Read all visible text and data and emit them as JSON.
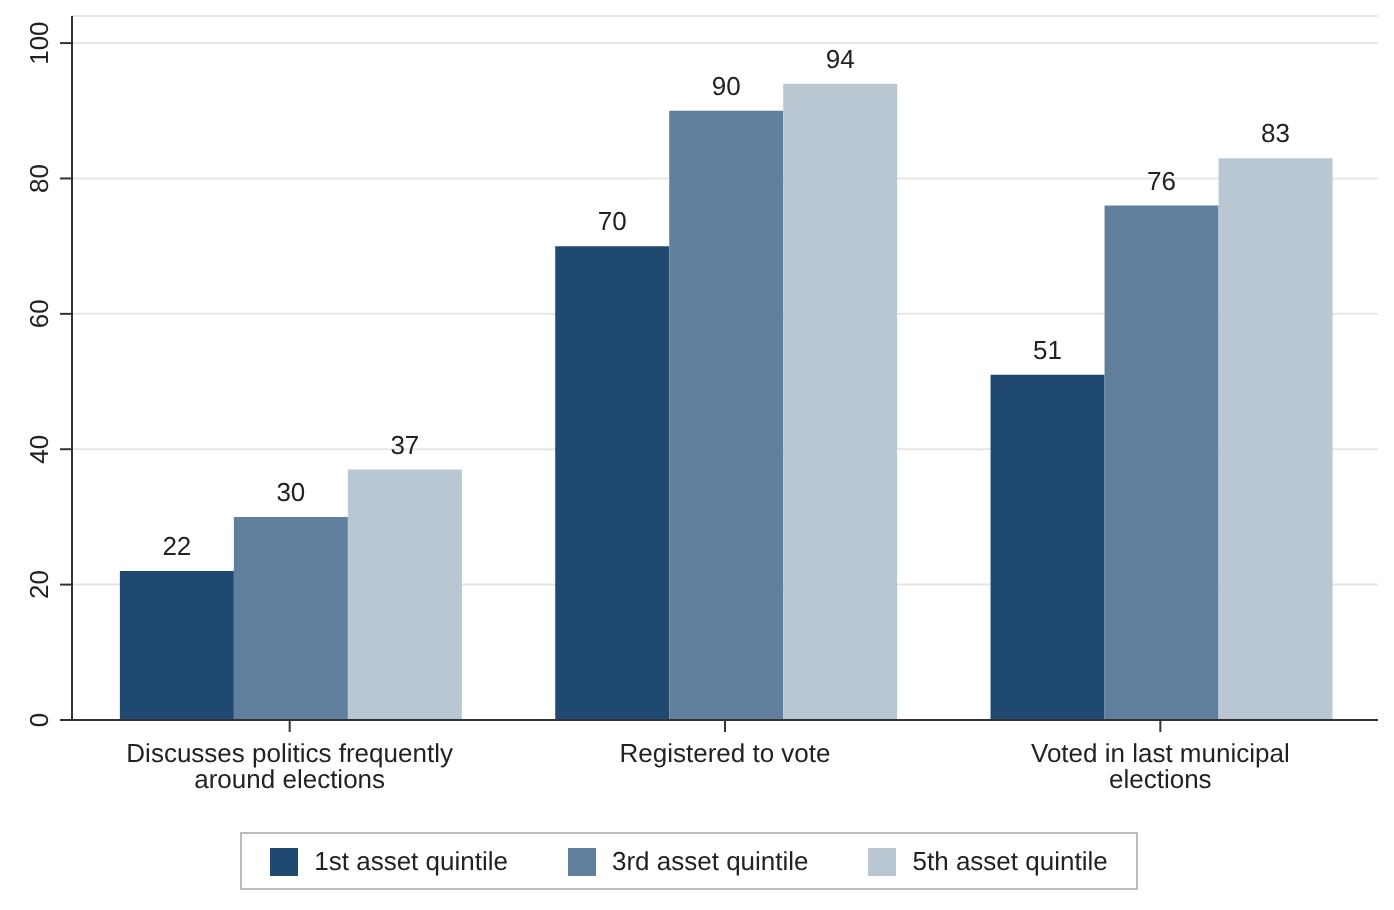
{
  "chart_data": {
    "type": "bar",
    "categories": [
      "Discusses politics frequently around elections",
      "Registered to vote",
      "Voted in last municipal elections"
    ],
    "series": [
      {
        "name": "1st asset quintile",
        "color": "#1f4970",
        "values": [
          22,
          70,
          51
        ]
      },
      {
        "name": "3rd asset quintile",
        "color": "#5f7f9c",
        "values": [
          30,
          90,
          76
        ]
      },
      {
        "name": "5th asset quintile",
        "color": "#b9c7d3",
        "values": [
          37,
          94,
          83
        ]
      }
    ],
    "ylim": [
      0,
      104
    ],
    "yticks": [
      0,
      20,
      40,
      60,
      80,
      100
    ],
    "grid": "y",
    "legend": "bottom",
    "data_labels": true
  }
}
